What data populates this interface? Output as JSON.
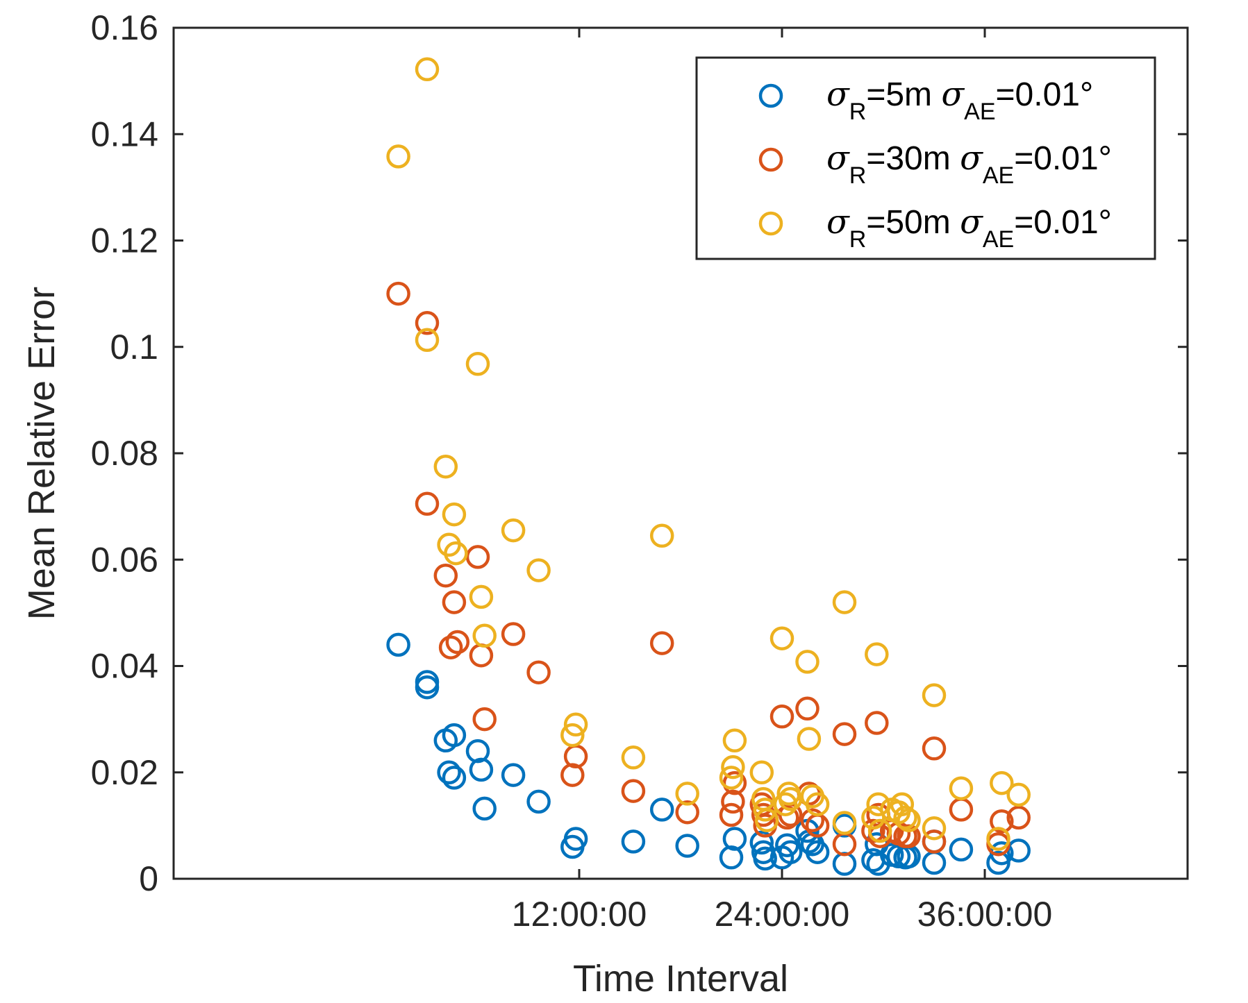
{
  "chart_data": {
    "type": "scatter",
    "title": "",
    "xlabel": "Time Interval",
    "ylabel": "Mean Relative Error",
    "xlim_hours": [
      -12,
      48
    ],
    "ylim": [
      0,
      0.16
    ],
    "x_ticks": [
      {
        "hours": 12,
        "label": "12:00:00"
      },
      {
        "hours": 24,
        "label": "24:00:00"
      },
      {
        "hours": 36,
        "label": "36:00:00"
      }
    ],
    "y_ticks": [
      {
        "value": 0,
        "label": "0"
      },
      {
        "value": 0.02,
        "label": "0.02"
      },
      {
        "value": 0.04,
        "label": "0.04"
      },
      {
        "value": 0.06,
        "label": "0.06"
      },
      {
        "value": 0.08,
        "label": "0.08"
      },
      {
        "value": 0.1,
        "label": "0.1"
      },
      {
        "value": 0.12,
        "label": "0.12"
      },
      {
        "value": 0.14,
        "label": "0.14"
      },
      {
        "value": 0.16,
        "label": "0.16"
      }
    ],
    "grid": false,
    "legend_position": "top-right",
    "series": [
      {
        "name": "σR=5m σAE=0.01°",
        "legend": {
          "sym1": "σ",
          "sub1": "R",
          "mid": "=5m ",
          "sym2": "σ",
          "sub2": "AE",
          "tail": "=0.01°"
        },
        "color": "#0072BD",
        "points": [
          [
            1.3,
            0.044
          ],
          [
            3.0,
            0.037
          ],
          [
            3.0,
            0.036
          ],
          [
            4.1,
            0.026
          ],
          [
            4.3,
            0.02
          ],
          [
            4.6,
            0.027
          ],
          [
            4.6,
            0.019
          ],
          [
            6.0,
            0.024
          ],
          [
            6.2,
            0.0205
          ],
          [
            6.4,
            0.0132
          ],
          [
            8.1,
            0.0195
          ],
          [
            9.6,
            0.0145
          ],
          [
            11.6,
            0.006
          ],
          [
            11.8,
            0.0075
          ],
          [
            15.2,
            0.007
          ],
          [
            16.9,
            0.013
          ],
          [
            18.4,
            0.0062
          ],
          [
            21.0,
            0.004
          ],
          [
            21.2,
            0.0075
          ],
          [
            22.8,
            0.0068
          ],
          [
            22.9,
            0.005
          ],
          [
            23.0,
            0.0038
          ],
          [
            24.0,
            0.004
          ],
          [
            24.3,
            0.0063
          ],
          [
            24.5,
            0.005
          ],
          [
            25.5,
            0.009
          ],
          [
            25.6,
            0.007
          ],
          [
            25.8,
            0.0065
          ],
          [
            26.1,
            0.005
          ],
          [
            27.7,
            0.01
          ],
          [
            27.7,
            0.0028
          ],
          [
            29.4,
            0.0035
          ],
          [
            29.6,
            0.0065
          ],
          [
            29.7,
            0.0028
          ],
          [
            30.5,
            0.0045
          ],
          [
            30.9,
            0.0042
          ],
          [
            31.3,
            0.004
          ],
          [
            31.5,
            0.0042
          ],
          [
            33.0,
            0.007
          ],
          [
            33.0,
            0.003
          ],
          [
            34.6,
            0.0055
          ],
          [
            36.8,
            0.003
          ],
          [
            37.0,
            0.0048
          ],
          [
            38.0,
            0.0053
          ]
        ]
      },
      {
        "name": "σR=30m σAE=0.01°",
        "legend": {
          "sym1": "σ",
          "sub1": "R",
          "mid": "=30m ",
          "sym2": "σ",
          "sub2": "AE",
          "tail": "=0.01°"
        },
        "color": "#D95319",
        "points": [
          [
            1.3,
            0.11
          ],
          [
            3.0,
            0.1045
          ],
          [
            3.0,
            0.0705
          ],
          [
            4.1,
            0.057
          ],
          [
            4.4,
            0.0435
          ],
          [
            4.6,
            0.052
          ],
          [
            4.8,
            0.0445
          ],
          [
            6.0,
            0.0605
          ],
          [
            6.2,
            0.042
          ],
          [
            6.4,
            0.03
          ],
          [
            8.1,
            0.046
          ],
          [
            9.6,
            0.0388
          ],
          [
            11.6,
            0.0195
          ],
          [
            11.8,
            0.023
          ],
          [
            15.2,
            0.0165
          ],
          [
            16.9,
            0.0443
          ],
          [
            18.4,
            0.0125
          ],
          [
            21.0,
            0.012
          ],
          [
            21.1,
            0.0145
          ],
          [
            21.2,
            0.018
          ],
          [
            22.8,
            0.014
          ],
          [
            22.9,
            0.012
          ],
          [
            23.0,
            0.01
          ],
          [
            24.0,
            0.0305
          ],
          [
            24.3,
            0.0115
          ],
          [
            24.5,
            0.012
          ],
          [
            25.5,
            0.032
          ],
          [
            25.6,
            0.016
          ],
          [
            25.8,
            0.011
          ],
          [
            26.1,
            0.01
          ],
          [
            27.7,
            0.0272
          ],
          [
            27.7,
            0.0065
          ],
          [
            29.4,
            0.009
          ],
          [
            29.6,
            0.0293
          ],
          [
            29.7,
            0.012
          ],
          [
            29.8,
            0.008
          ],
          [
            30.5,
            0.009
          ],
          [
            30.9,
            0.0085
          ],
          [
            31.3,
            0.008
          ],
          [
            31.5,
            0.008
          ],
          [
            33.0,
            0.0245
          ],
          [
            33.0,
            0.007
          ],
          [
            34.6,
            0.013
          ],
          [
            36.8,
            0.0065
          ],
          [
            37.0,
            0.0108
          ],
          [
            38.0,
            0.0115
          ]
        ]
      },
      {
        "name": "σR=50m σAE=0.01°",
        "legend": {
          "sym1": "σ",
          "sub1": "R",
          "mid": "=50m ",
          "sym2": "σ",
          "sub2": "AE",
          "tail": "=0.01°"
        },
        "color": "#EDB120",
        "points": [
          [
            1.3,
            0.1358
          ],
          [
            3.0,
            0.1522
          ],
          [
            3.0,
            0.1013
          ],
          [
            4.1,
            0.0775
          ],
          [
            4.3,
            0.0628
          ],
          [
            4.6,
            0.0685
          ],
          [
            4.7,
            0.0612
          ],
          [
            6.0,
            0.0968
          ],
          [
            6.2,
            0.053
          ],
          [
            6.4,
            0.0457
          ],
          [
            8.1,
            0.0655
          ],
          [
            9.6,
            0.058
          ],
          [
            11.6,
            0.027
          ],
          [
            11.8,
            0.029
          ],
          [
            15.2,
            0.0228
          ],
          [
            16.9,
            0.0645
          ],
          [
            18.4,
            0.016
          ],
          [
            21.0,
            0.019
          ],
          [
            21.1,
            0.021
          ],
          [
            21.2,
            0.026
          ],
          [
            22.8,
            0.02
          ],
          [
            22.9,
            0.015
          ],
          [
            23.0,
            0.013
          ],
          [
            23.1,
            0.011
          ],
          [
            24.0,
            0.0452
          ],
          [
            24.2,
            0.014
          ],
          [
            24.4,
            0.016
          ],
          [
            24.5,
            0.015
          ],
          [
            25.5,
            0.0408
          ],
          [
            25.6,
            0.0263
          ],
          [
            25.8,
            0.0155
          ],
          [
            26.1,
            0.014
          ],
          [
            27.7,
            0.052
          ],
          [
            27.7,
            0.0105
          ],
          [
            29.4,
            0.0115
          ],
          [
            29.6,
            0.0422
          ],
          [
            29.7,
            0.014
          ],
          [
            29.8,
            0.009
          ],
          [
            30.5,
            0.013
          ],
          [
            30.9,
            0.0125
          ],
          [
            31.1,
            0.014
          ],
          [
            31.3,
            0.0115
          ],
          [
            31.5,
            0.011
          ],
          [
            33.0,
            0.0345
          ],
          [
            33.0,
            0.0095
          ],
          [
            34.6,
            0.017
          ],
          [
            36.8,
            0.0075
          ],
          [
            37.0,
            0.018
          ],
          [
            38.0,
            0.0158
          ]
        ]
      }
    ]
  }
}
